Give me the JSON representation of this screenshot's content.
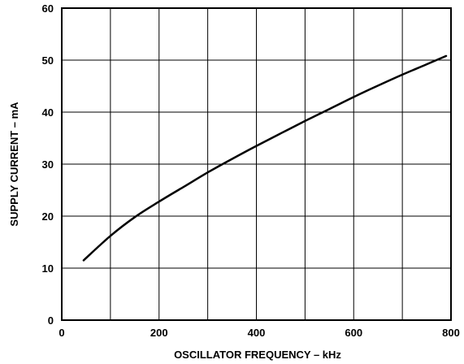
{
  "chart_data": {
    "type": "line",
    "title": "",
    "xlabel": "OSCILLATOR FREQUENCY – kHz",
    "ylabel": "SUPPLY CURRENT – mA",
    "xlim": [
      0,
      800
    ],
    "ylim": [
      0,
      60
    ],
    "xticks": [
      0,
      200,
      400,
      600,
      800
    ],
    "yticks": [
      0,
      10,
      20,
      30,
      40,
      50,
      60
    ],
    "grid": true,
    "x_grid_step": 100,
    "series": [
      {
        "x": [
          45,
          100,
          150,
          200,
          250,
          300,
          350,
          400,
          450,
          500,
          550,
          600,
          650,
          700,
          750,
          790
        ],
        "y": [
          11.5,
          16.2,
          19.8,
          22.8,
          25.6,
          28.4,
          31.0,
          33.5,
          35.9,
          38.3,
          40.6,
          42.9,
          45.1,
          47.2,
          49.2,
          50.8
        ]
      }
    ]
  }
}
